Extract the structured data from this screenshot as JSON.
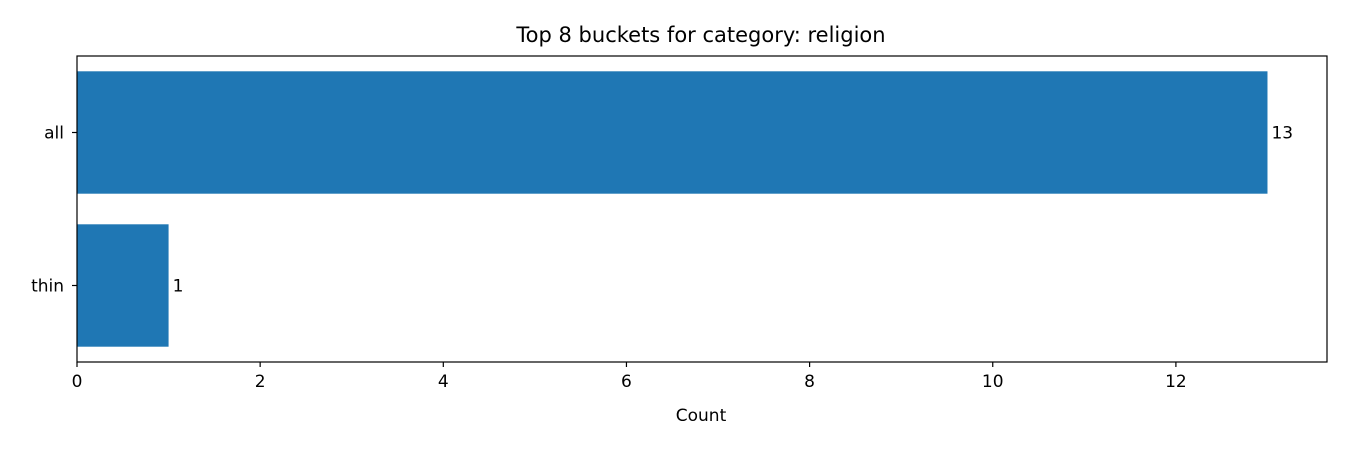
{
  "chart_data": {
    "type": "bar",
    "orientation": "horizontal",
    "title": "Top 8 buckets for category: religion",
    "xlabel": "Count",
    "ylabel": "",
    "categories": [
      "all",
      "thin"
    ],
    "values": [
      13,
      1
    ],
    "value_labels": [
      "13",
      "1"
    ],
    "xlim": [
      0,
      13.65
    ],
    "x_ticks": [
      0,
      2,
      4,
      6,
      8,
      10,
      12
    ],
    "x_tick_labels": [
      "0",
      "2",
      "4",
      "6",
      "8",
      "10",
      "12"
    ],
    "grid": false,
    "legend": "none",
    "bar_color": "#1f77b4"
  }
}
